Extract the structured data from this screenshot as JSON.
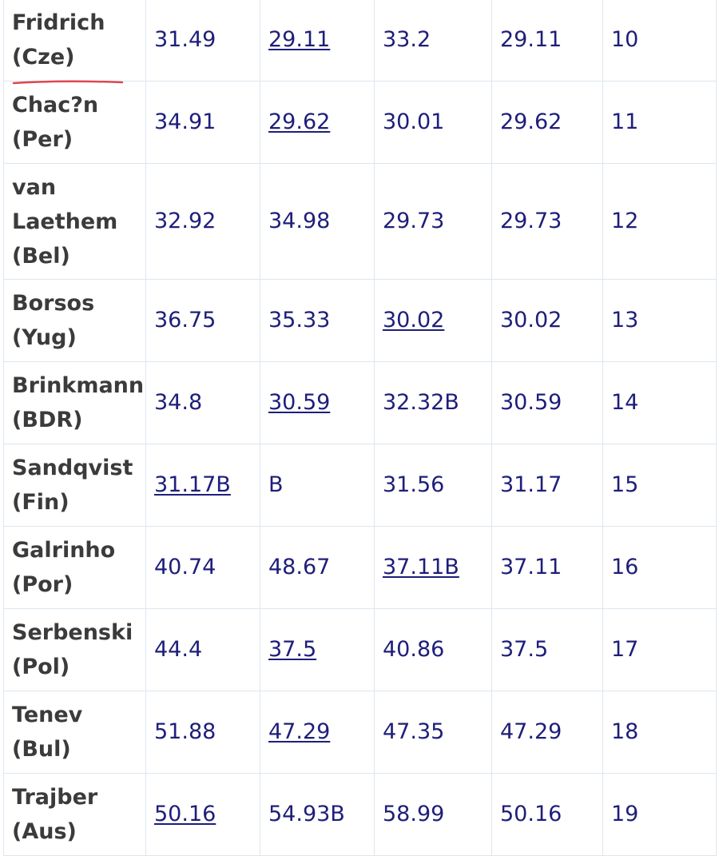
{
  "table": {
    "rows": [
      {
        "name_line1": "Fridrich",
        "name_line2": "(Cze)",
        "r1": "31.49",
        "r1_link": false,
        "r2": "29.11",
        "r2_link": true,
        "r3": "33.2",
        "r3_link": false,
        "best": "29.11",
        "rank": "10"
      },
      {
        "name_line1": "Chac?n",
        "name_line2": "(Per)",
        "r1": "34.91",
        "r1_link": false,
        "r2": "29.62",
        "r2_link": true,
        "r3": "30.01",
        "r3_link": false,
        "best": "29.62",
        "rank": "11"
      },
      {
        "name_line1": "van",
        "name_line2": "Laethem",
        "name_line3": "(Bel)",
        "r1": "32.92",
        "r1_link": false,
        "r2": "34.98",
        "r2_link": false,
        "r3": "29.73",
        "r3_link": false,
        "best": "29.73",
        "rank": "12"
      },
      {
        "name_line1": "Borsos",
        "name_line2": "(Yug)",
        "r1": "36.75",
        "r1_link": false,
        "r2": "35.33",
        "r2_link": false,
        "r3": "30.02",
        "r3_link": true,
        "best": "30.02",
        "rank": "13"
      },
      {
        "name_line1": "Brinkmann",
        "name_line2": "(BDR)",
        "r1": "34.8",
        "r1_link": false,
        "r2": "30.59",
        "r2_link": true,
        "r3": "32.32B",
        "r3_link": false,
        "best": "30.59",
        "rank": "14"
      },
      {
        "name_line1": "Sandqvist",
        "name_line2": "(Fin)",
        "r1": "31.17B",
        "r1_link": true,
        "r2": "B",
        "r2_link": false,
        "r3": "31.56",
        "r3_link": false,
        "best": "31.17",
        "rank": "15"
      },
      {
        "name_line1": "Galrinho",
        "name_line2": "(Por)",
        "r1": "40.74",
        "r1_link": false,
        "r2": "48.67",
        "r2_link": false,
        "r3": "37.11B",
        "r3_link": true,
        "best": "37.11",
        "rank": "16"
      },
      {
        "name_line1": "Serbenski",
        "name_line2": "(Pol)",
        "r1": "44.4",
        "r1_link": false,
        "r2": "37.5",
        "r2_link": true,
        "r3": "40.86",
        "r3_link": false,
        "best": "37.5",
        "rank": "17"
      },
      {
        "name_line1": "Tenev",
        "name_line2": "(Bul)",
        "r1": "51.88",
        "r1_link": false,
        "r2": "47.29",
        "r2_link": true,
        "r3": "47.35",
        "r3_link": false,
        "best": "47.29",
        "rank": "18"
      },
      {
        "name_line1": "Trajber",
        "name_line2": "(Aus)",
        "r1": "50.16",
        "r1_link": true,
        "r2": "54.93B",
        "r2_link": false,
        "r3": "58.99",
        "r3_link": false,
        "best": "50.16",
        "rank": "19"
      }
    ]
  },
  "annotation": {
    "underline_color": "#e0464f"
  }
}
